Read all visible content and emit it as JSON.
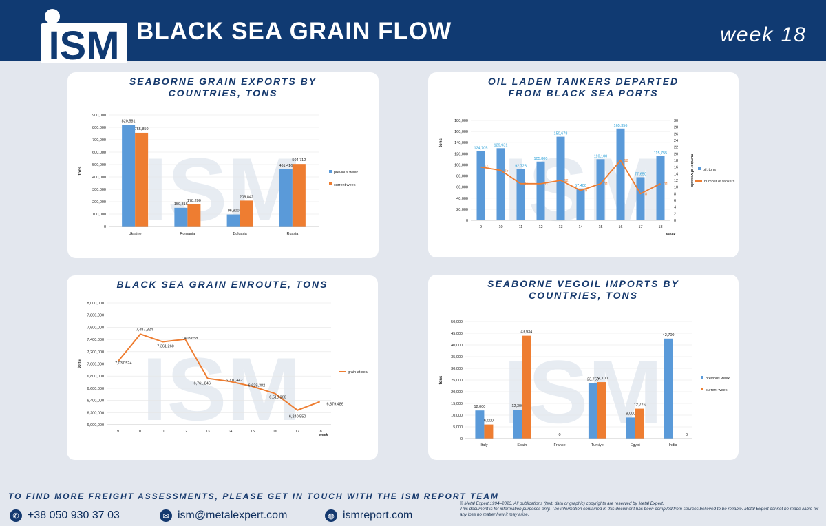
{
  "header": {
    "logo_text": "ISM",
    "title": "BLACK SEA GRAIN FLOW",
    "week_label": "week 18",
    "colors": {
      "header_bg": "#103a72",
      "blue": "#5a9ad9",
      "orange": "#ee7d31"
    }
  },
  "chart_data": [
    {
      "type": "bar",
      "title_lines": [
        "SEABORNE GRAIN EXPORTS BY",
        "COUNTRIES, TONS"
      ],
      "ylabel": "tons",
      "ylim": [
        0,
        900000
      ],
      "y_ticks": [
        "0",
        "100,000",
        "200,000",
        "300,000",
        "400,000",
        "500,000",
        "600,000",
        "700,000",
        "800,000",
        "900,000"
      ],
      "categories": [
        "Ukraine",
        "Romania",
        "Bulgaria",
        "Russia"
      ],
      "series": [
        {
          "name": "previous week",
          "color": "#5a9ad9",
          "values": [
            820581,
            150816,
            96900,
            461416
          ],
          "labels": [
            "820,581",
            "150,816",
            "96,900",
            "461,416"
          ]
        },
        {
          "name": "current week",
          "color": "#ee7d31",
          "values": [
            755850,
            178200,
            208842,
            504712
          ],
          "labels": [
            "755,850",
            "178,200",
            "208,842",
            "504,712"
          ]
        }
      ],
      "legend": "right"
    },
    {
      "type": "bar",
      "title_lines": [
        "OIL LADEN TANKERS DEPARTED",
        "FROM BLACK SEA PORTS"
      ],
      "ylabel": "tons",
      "y2label": "number of vessels",
      "xlabel": "week",
      "ylim": [
        0,
        180000
      ],
      "y2lim": [
        0,
        30
      ],
      "y_ticks": [
        "0",
        "20,000",
        "40,000",
        "60,000",
        "80,000",
        "100,000",
        "120,000",
        "140,000",
        "160,000",
        "180,000"
      ],
      "y2_ticks": [
        "0",
        "2",
        "4",
        "6",
        "8",
        "10",
        "12",
        "14",
        "16",
        "18",
        "20",
        "22",
        "24",
        "26",
        "28",
        "30"
      ],
      "categories": [
        "9",
        "10",
        "11",
        "12",
        "13",
        "14",
        "15",
        "16",
        "17",
        "18"
      ],
      "series": [
        {
          "name": "oil, tons",
          "color": "#5a9ad9",
          "values": [
            124705,
            129931,
            92723,
            105800,
            150678,
            57400,
            110100,
            165356,
            77650,
            115755
          ],
          "labels": [
            "124,705",
            "129,931",
            "92,723",
            "105,800",
            "150,678",
            "57,400",
            "110,100",
            "165,356",
            "77,650",
            "115,755"
          ]
        },
        {
          "name": "number of tankers",
          "color": "#ee7d31",
          "axis": "right",
          "values": [
            16,
            15,
            11,
            11,
            12,
            9,
            11,
            18,
            8,
            11
          ],
          "labels": [
            "16",
            "15",
            "11",
            "11",
            "12",
            "9",
            "11",
            "18",
            "8",
            "11"
          ]
        }
      ],
      "legend": "right"
    },
    {
      "type": "line",
      "title_lines": [
        "BLACK SEA GRAIN ENROUTE, TONS"
      ],
      "ylabel": "tons",
      "xlabel": "week",
      "ylim": [
        6000000,
        8000000
      ],
      "y_ticks": [
        "6,000,000",
        "6,200,000",
        "6,400,000",
        "6,600,000",
        "6,800,000",
        "7,000,000",
        "7,200,000",
        "7,400,000",
        "7,600,000",
        "7,800,000",
        "8,000,000"
      ],
      "categories": [
        "9",
        "10",
        "11",
        "12",
        "13",
        "14",
        "15",
        "16",
        "17",
        "18"
      ],
      "series": [
        {
          "name": "grain at sea",
          "color": "#ee7d31",
          "values": [
            7037524,
            7487824,
            7361260,
            7403658,
            6761846,
            6710442,
            6629382,
            6513066,
            6240550,
            6379486
          ],
          "labels": [
            "7,037,524",
            "7,487,824",
            "7,361,260",
            "7,403,658",
            "6,761,846",
            "6,710,442",
            "6,629,382",
            "6,513,066",
            "6,240,550",
            "6,379,486"
          ]
        }
      ],
      "legend": "right"
    },
    {
      "type": "bar",
      "title_lines": [
        "SEABORNE VEGOIL IMPORTS BY",
        "COUNTRIES, TONS"
      ],
      "ylabel": "tons",
      "ylim": [
        0,
        50000
      ],
      "y_ticks": [
        "0",
        "5,000",
        "10,000",
        "15,000",
        "20,000",
        "25,000",
        "30,000",
        "35,000",
        "40,000",
        "45,000",
        "50,000"
      ],
      "categories": [
        "Italy",
        "Spain",
        "France",
        "Turkiye",
        "Egypt",
        "India"
      ],
      "series": [
        {
          "name": "previous week",
          "color": "#5a9ad9",
          "values": [
            12000,
            12300,
            0,
            23750,
            9000,
            42700
          ],
          "labels": [
            "12,000",
            "12,300",
            "0",
            "23,750",
            "9,000",
            "42,700"
          ]
        },
        {
          "name": "current week",
          "color": "#ee7d31",
          "values": [
            6000,
            43934,
            0,
            24100,
            12776,
            0
          ],
          "labels": [
            "6,000",
            "43,934",
            "",
            "24,100",
            "12,776",
            "0"
          ]
        }
      ],
      "legend": "right"
    }
  ],
  "footer": {
    "cta": "TO FIND MORE FREIGHT ASSESSMENTS, PLEASE GET IN TOUCH WITH THE ISM REPORT TEAM",
    "phone": "+38 050 930 37 03",
    "email": "ism@metalexpert.com",
    "website": "ismreport.com",
    "copyright": "© Metal Expert 1994–2023. All publications (text, data or graphic) copyrights are reserved by Metal Expert.",
    "disclaimer": "This document is for information purposes only. The information contained in this document has been compiled from sources believed to be reliable. Metal Expert cannot be made liable for any loss no matter how it may arise.",
    "icons": [
      "phone-icon",
      "email-icon",
      "globe-icon"
    ]
  }
}
